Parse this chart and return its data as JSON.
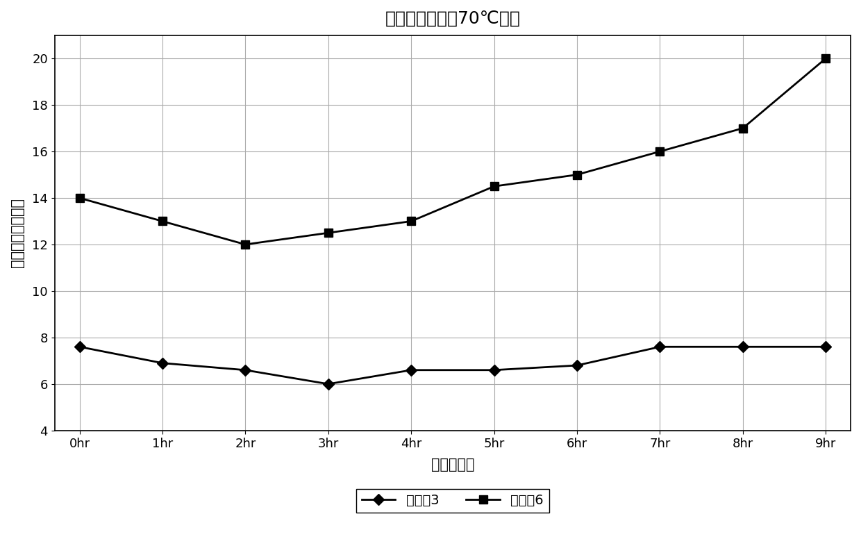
{
  "title": "随时间的挥发（70℃时）",
  "xlabel": "通过的时间",
  "ylabel": "去除时间（分钟）",
  "x_labels": [
    "0hr",
    "1hr",
    "2hr",
    "3hr",
    "4hr",
    "5hr",
    "6hr",
    "7hr",
    "8hr",
    "9hr"
  ],
  "x_values": [
    0,
    1,
    2,
    3,
    4,
    5,
    6,
    7,
    8,
    9
  ],
  "series1_name": "实施兙3",
  "series1_values": [
    7.6,
    6.9,
    6.6,
    6.0,
    6.6,
    6.6,
    6.8,
    7.6,
    7.6,
    7.6
  ],
  "series2_name": "比较兙6",
  "series2_values": [
    14.0,
    13.0,
    12.0,
    12.5,
    13.0,
    14.5,
    15.0,
    16.0,
    17.0,
    20.0
  ],
  "ylim_min": 4,
  "ylim_max": 21,
  "yticks": [
    4,
    6,
    8,
    10,
    12,
    14,
    16,
    18,
    20
  ],
  "line_color": "#000000",
  "marker1": "D",
  "marker2": "s",
  "markersize": 8,
  "linewidth": 2,
  "title_fontsize": 18,
  "label_fontsize": 15,
  "tick_fontsize": 13,
  "legend_fontsize": 14,
  "background_color": "#ffffff",
  "grid_color": "#aaaaaa"
}
